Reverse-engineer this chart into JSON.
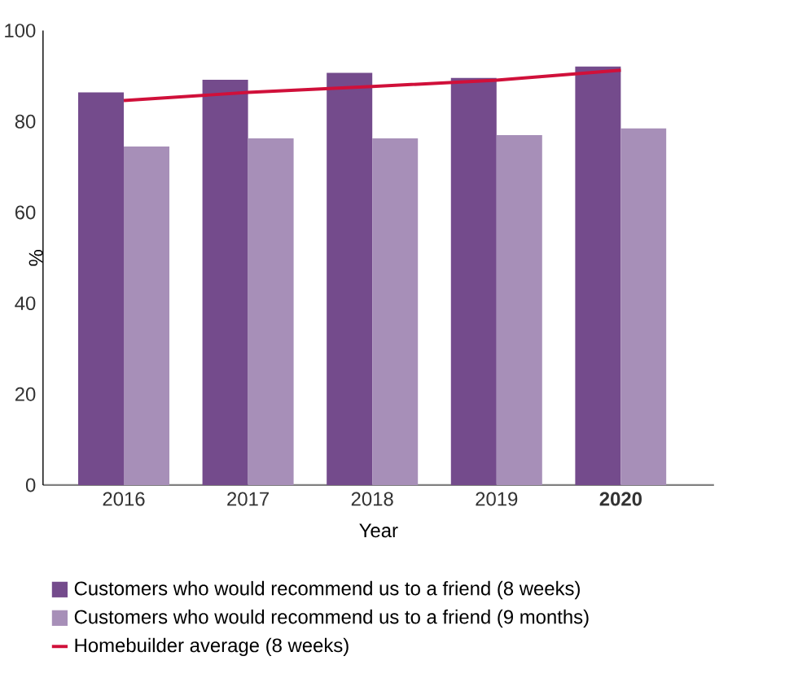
{
  "chart_data": {
    "type": "bar",
    "xlabel": "Year",
    "ylabel": "%",
    "categories": [
      "2016",
      "2017",
      "2018",
      "2019",
      "**2020**"
    ],
    "ylim": [
      0,
      100
    ],
    "yticks": [
      0,
      20,
      40,
      60,
      80,
      100
    ],
    "legend": "bottom",
    "series": [
      {
        "name": "Customers who would recommend us to a friend (8 weeks)",
        "color": "#744b8c",
        "values": [
          86.4,
          89.2,
          90.7,
          89.6,
          92.1
        ]
      },
      {
        "name": "Customers who would recommend us to a friend (9 months)",
        "color": "#a78fb8",
        "values": [
          74.5,
          76.3,
          76.3,
          77.0,
          78.5
        ]
      },
      {
        "name": "Homebuilder average (8 weeks)",
        "type": "line",
        "color": "#d0103a",
        "values": [
          84.6,
          86.4,
          87.7,
          89.1,
          91.3
        ]
      }
    ]
  }
}
